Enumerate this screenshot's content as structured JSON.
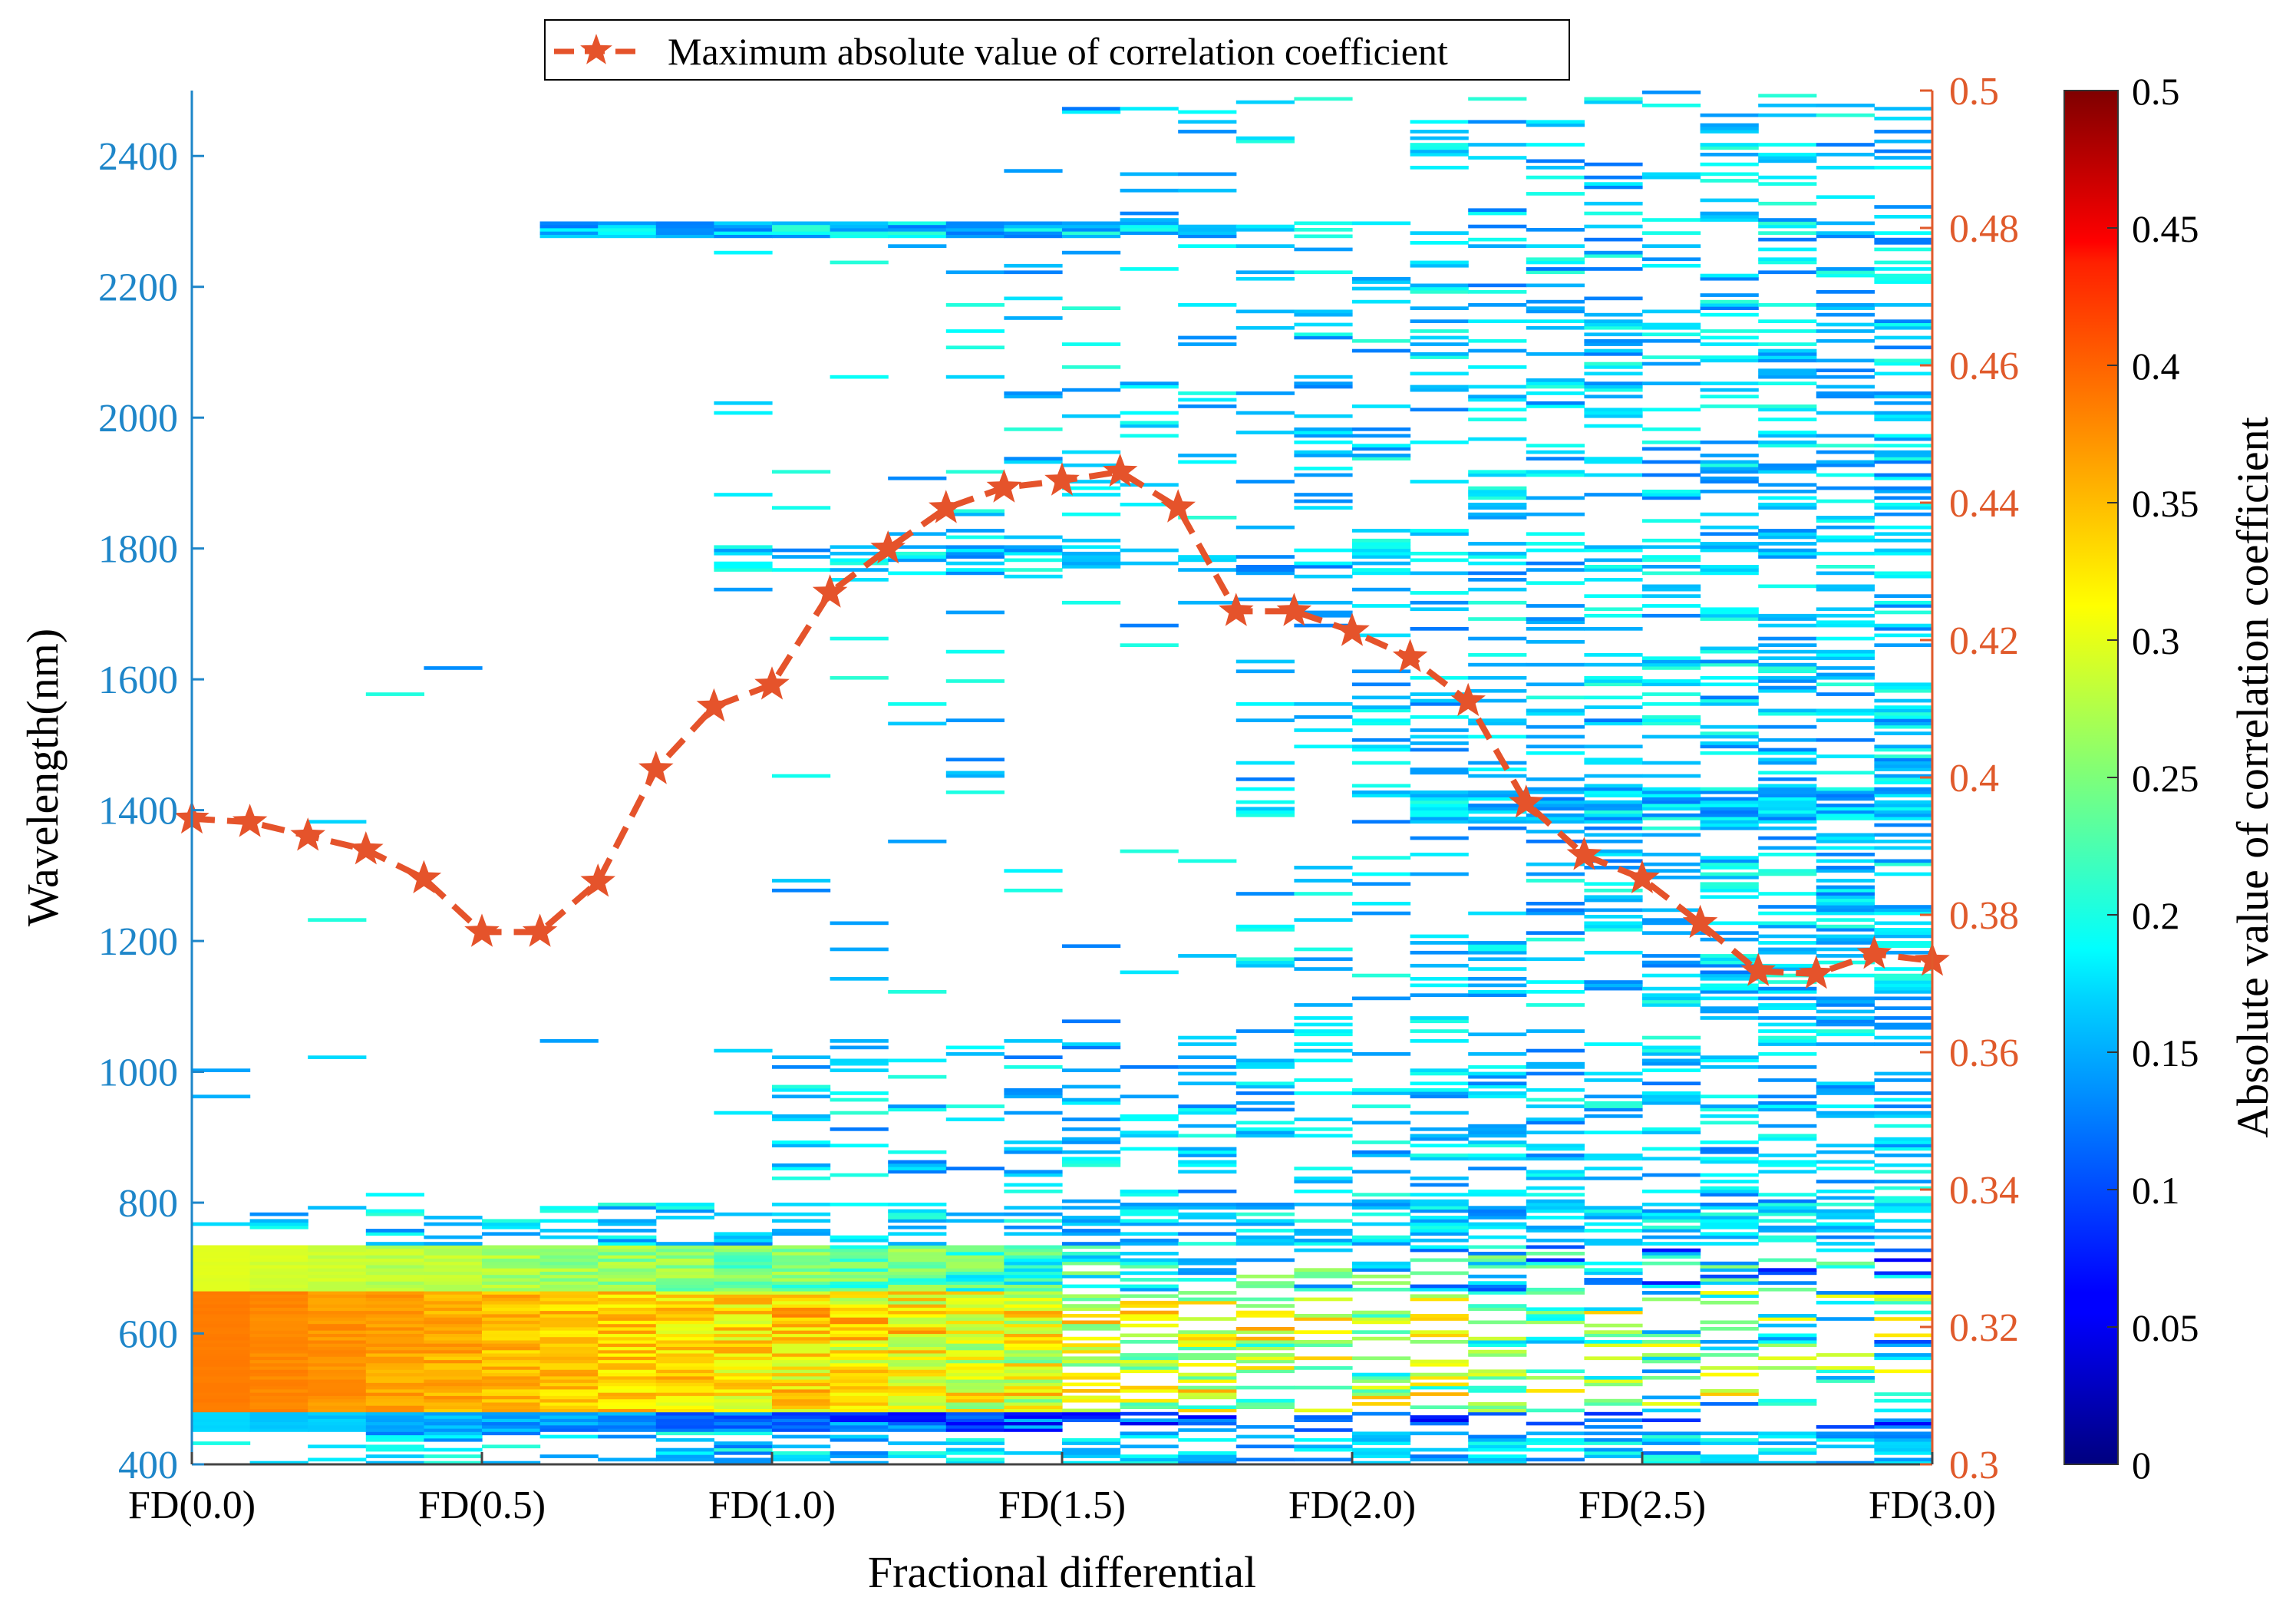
{
  "chart_data": {
    "type": "heatmap",
    "title": "",
    "xlabel": "Fractional differential",
    "ylabel": "Wavelength(nm)",
    "y2label": "",
    "colorbar_label": "Absolute value of correlation coefficient",
    "x_ticks": [
      "FD(0.0)",
      "FD(0.5)",
      "FD(1.0)",
      "FD(1.5)",
      "FD(2.0)",
      "FD(2.5)",
      "FD(3.0)"
    ],
    "x_range": [
      0,
      3.0
    ],
    "y_range": [
      400,
      2500
    ],
    "y_ticks": [
      400,
      600,
      800,
      1000,
      1200,
      1400,
      1600,
      1800,
      2000,
      2200,
      2400
    ],
    "y2_range": [
      0.3,
      0.5
    ],
    "y2_ticks": [
      "0.3",
      "0.32",
      "0.34",
      "0.36",
      "0.38",
      "0.4",
      "0.42",
      "0.44",
      "0.46",
      "0.48",
      "0.5"
    ],
    "colorbar_range": [
      0,
      0.5
    ],
    "colorbar_ticks": [
      "0",
      "0.05",
      "0.1",
      "0.15",
      "0.2",
      "0.25",
      "0.3",
      "0.35",
      "0.4",
      "0.45",
      "0.5"
    ],
    "heatmap_description": "Absolute correlation coefficient between fractional-differential spectra and target, shown only where significant; strongest (0.35-0.45) at 500-720 nm, weaker (0.1-0.2) scattered bands elsewhere increasing with order.",
    "line_series": {
      "name": "Maximum absolute value of correlation coefficient",
      "x": [
        0.0,
        0.1,
        0.2,
        0.3,
        0.4,
        0.5,
        0.6,
        0.7,
        0.8,
        0.9,
        1.0,
        1.1,
        1.2,
        1.3,
        1.4,
        1.5,
        1.6,
        1.7,
        1.8,
        1.9,
        2.0,
        2.1,
        2.2,
        2.3,
        2.4,
        2.5,
        2.6,
        2.7,
        2.8,
        2.9,
        3.0
      ],
      "y": [
        0.394,
        0.3935,
        0.3915,
        0.3895,
        0.3853,
        0.3775,
        0.3775,
        0.3848,
        0.4012,
        0.4103,
        0.4135,
        0.4269,
        0.4333,
        0.4392,
        0.4422,
        0.4432,
        0.4445,
        0.4393,
        0.4242,
        0.4242,
        0.4213,
        0.4175,
        0.4111,
        0.3963,
        0.3887,
        0.3853,
        0.3788,
        0.3718,
        0.3714,
        0.3743,
        0.3733
      ],
      "color": "#e5532b"
    }
  },
  "colors": {
    "left_axis": "#1e86c9",
    "right_axis": "#e05a2b",
    "line": "#e5532b"
  }
}
